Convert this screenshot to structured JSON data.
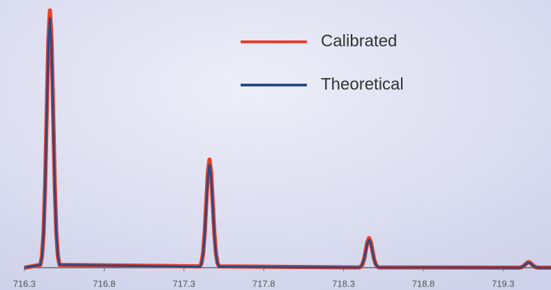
{
  "chart_data": {
    "type": "line",
    "x": [
      716.3,
      716.4,
      716.41,
      716.42,
      716.43,
      716.44,
      716.45,
      716.46,
      716.47,
      716.48,
      716.49,
      716.5,
      716.51,
      716.52,
      717.4,
      717.41,
      717.42,
      717.43,
      717.44,
      717.45,
      717.46,
      717.47,
      717.48,
      717.49,
      717.5,
      717.51,
      717.52,
      718.4,
      718.41,
      718.42,
      718.43,
      718.44,
      718.45,
      718.46,
      718.47,
      718.48,
      718.49,
      718.5,
      718.51,
      718.52,
      719.4,
      719.41,
      719.42,
      719.43,
      719.44,
      719.45,
      719.46,
      719.47,
      719.48,
      719.49,
      719.5,
      719.51,
      719.52,
      719.6
    ],
    "series": [
      {
        "name": "Calibrated",
        "color": "#e8402a",
        "values": [
          0,
          1.1,
          4.4,
          13.5,
          32.5,
          60.7,
          88.2,
          100,
          88.2,
          60.7,
          32.5,
          13.5,
          4.4,
          1.1,
          0.5,
          1.8,
          5.7,
          13.7,
          25.5,
          37.0,
          42,
          37.0,
          25.5,
          13.7,
          5.7,
          1.8,
          0.5,
          0.1,
          0.5,
          1.6,
          3.7,
          7.0,
          10.1,
          11.5,
          10.1,
          7.0,
          3.7,
          1.6,
          0.5,
          0.1,
          0,
          0.1,
          0.3,
          0.7,
          1.3,
          1.9,
          2.2,
          1.9,
          1.3,
          0.7,
          0.3,
          0.1,
          0,
          0
        ]
      },
      {
        "name": "Theoretical",
        "color": "#2a4a86",
        "values": [
          0,
          1.1,
          4.3,
          13.1,
          31.5,
          58.9,
          85.6,
          97,
          85.6,
          58.9,
          31.5,
          13.1,
          4.3,
          1.1,
          0.4,
          1.8,
          5.4,
          13.0,
          24.3,
          35.3,
          40,
          35.3,
          24.3,
          13.0,
          5.4,
          1.8,
          0.4,
          0.1,
          0.5,
          1.5,
          3.5,
          6.6,
          9.5,
          10.8,
          9.5,
          6.6,
          3.5,
          1.5,
          0.5,
          0.1,
          0,
          0.1,
          0.3,
          0.7,
          1.2,
          1.8,
          2.0,
          1.8,
          1.2,
          0.7,
          0.3,
          0.1,
          0,
          0
        ]
      }
    ],
    "xlim": [
      716.3,
      719.6
    ],
    "xticks": [
      716.3,
      716.8,
      717.3,
      717.8,
      718.3,
      718.8,
      719.3
    ],
    "ylim": [
      0,
      100
    ]
  }
}
